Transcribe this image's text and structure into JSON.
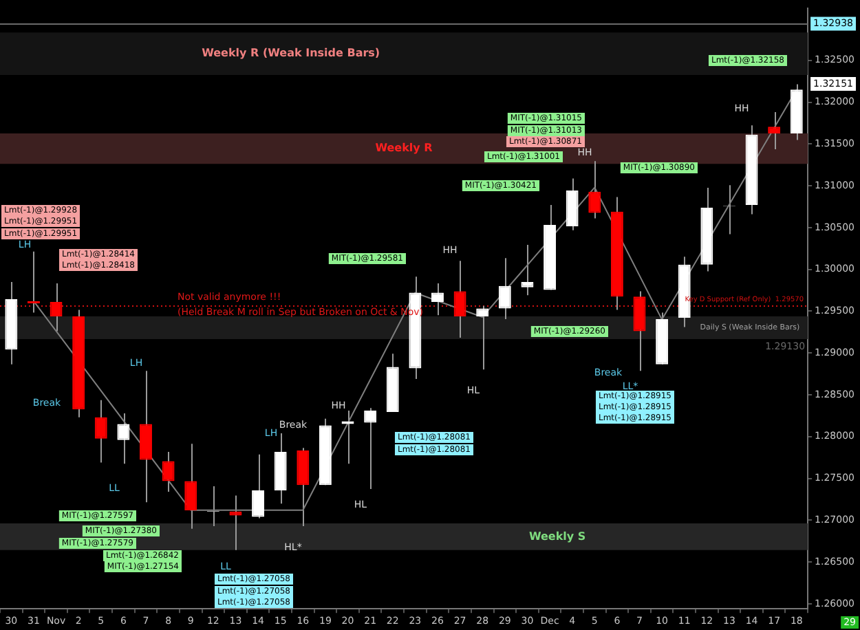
{
  "chart_data": {
    "type": "candlestick",
    "categories": [
      "30",
      "31",
      "Nov",
      "2",
      "5",
      "6",
      "7",
      "8",
      "9",
      "12",
      "13",
      "14",
      "15",
      "16",
      "19",
      "20",
      "21",
      "22",
      "23",
      "26",
      "27",
      "28",
      "29",
      "30",
      "Dec",
      "4",
      "5",
      "6",
      "7",
      "10",
      "11",
      "12",
      "13",
      "14",
      "17",
      "18"
    ],
    "ohlc": [
      [
        1.2904,
        1.29849,
        1.28865,
        1.29643
      ],
      [
        1.29619,
        1.30214,
        1.29484,
        1.29595
      ],
      [
        1.29611,
        1.29833,
        1.29262,
        1.29437
      ],
      [
        1.29437,
        1.29516,
        1.2823,
        1.28325
      ],
      [
        1.2823,
        1.28437,
        1.2769,
        1.27976
      ],
      [
        1.2796,
        1.28278,
        1.27675,
        1.2815
      ],
      [
        1.2815,
        1.28786,
        1.27214,
        1.27722
      ],
      [
        1.27706,
        1.27817,
        1.27341,
        1.27468
      ],
      [
        1.27468,
        1.27913,
        1.26897,
        1.27119
      ],
      [
        1.271,
        1.27405,
        1.26929,
        1.2711
      ],
      [
        1.27103,
        1.27294,
        1.26643,
        1.27056
      ],
      [
        1.2704,
        1.27786,
        1.27024,
        1.27357
      ],
      [
        1.27357,
        1.2804,
        1.27198,
        1.27817
      ],
      [
        1.27833,
        1.27865,
        1.26929,
        1.27421
      ],
      [
        1.27421,
        1.28214,
        1.27421,
        1.28135
      ],
      [
        1.2815,
        1.2831,
        1.27675,
        1.28183
      ],
      [
        1.28167,
        1.28341,
        1.27373,
        1.2831
      ],
      [
        1.28294,
        1.28992,
        1.28294,
        1.28833
      ],
      [
        1.28817,
        1.29913,
        1.2869,
        1.29722
      ],
      [
        1.29611,
        1.29833,
        1.29452,
        1.29722
      ],
      [
        1.29738,
        1.30103,
        1.29183,
        1.29437
      ],
      [
        1.29437,
        1.29563,
        1.28802,
        1.29532
      ],
      [
        1.29532,
        1.30135,
        1.29405,
        1.29802
      ],
      [
        1.29786,
        1.30294,
        1.2969,
        1.29849
      ],
      [
        1.29754,
        1.3077,
        1.29754,
        1.30532
      ],
      [
        1.30516,
        1.31087,
        1.30468,
        1.30944
      ],
      [
        1.30929,
        1.31294,
        1.30611,
        1.30675
      ],
      [
        1.3069,
        1.30865,
        1.29516,
        1.29675
      ],
      [
        1.29675,
        1.29738,
        1.28786,
        1.29262
      ],
      [
        1.28865,
        1.29484,
        1.28865,
        1.29405
      ],
      [
        1.29421,
        1.30151,
        1.2931,
        1.30056
      ],
      [
        1.30056,
        1.30976,
        1.29976,
        1.30738
      ],
      [
        1.30754,
        1.31008,
        1.30421,
        1.3076
      ],
      [
        1.3077,
        1.31722,
        1.30659,
        1.31611
      ],
      [
        1.31706,
        1.31881,
        1.31437,
        1.31627
      ],
      [
        1.31627,
        1.32214,
        1.31548,
        1.32151
      ]
    ],
    "colors": [
      "#ffffff",
      "#ff0000",
      "#ff0000",
      "#ff0000",
      "#ff0000",
      "#ffffff",
      "#ff0000",
      "#ff0000",
      "#ff0000",
      "#a0a0a0",
      "#ff0000",
      "#ffffff",
      "#ffffff",
      "#ff0000",
      "#ffffff",
      "#ffffff",
      "#ffffff",
      "#ffffff",
      "#ffffff",
      "#ffffff",
      "#ff0000",
      "#ffffff",
      "#ffffff",
      "#ffffff",
      "#ffffff",
      "#ffffff",
      "#ff0000",
      "#ff0000",
      "#ff0000",
      "#ffffff",
      "#ffffff",
      "#ffffff",
      "#a0a0a0",
      "#ffffff",
      "#ff0000",
      "#ffffff"
    ],
    "series": [
      {
        "type": "line",
        "color": "#7f7f7f",
        "values": [
          null,
          1.2962,
          null,
          null,
          null,
          null,
          null,
          null,
          1.2712,
          null,
          null,
          null,
          null,
          1.2712,
          null,
          null,
          null,
          null,
          1.2972,
          null,
          null,
          1.2943,
          null,
          null,
          null,
          null,
          1.3098,
          null,
          null,
          1.294,
          null,
          null,
          null,
          null,
          null,
          1.3215
        ]
      }
    ],
    "ylim": [
      1.2594,
      1.3312
    ],
    "yticks": [
      {
        "value": 1.26,
        "label": "1.26000"
      },
      {
        "value": 1.265,
        "label": "1.26500"
      },
      {
        "value": 1.27,
        "label": "1.27000"
      },
      {
        "value": 1.275,
        "label": "1.27500"
      },
      {
        "value": 1.28,
        "label": "1.28000"
      },
      {
        "value": 1.285,
        "label": "1.28500"
      },
      {
        "value": 1.29,
        "label": "1.29000"
      },
      {
        "value": 1.295,
        "label": "1.29500"
      },
      {
        "value": 1.3,
        "label": "1.30000"
      },
      {
        "value": 1.305,
        "label": "1.30500"
      },
      {
        "value": 1.31,
        "label": "1.31000"
      },
      {
        "value": 1.315,
        "label": "1.31500"
      },
      {
        "value": 1.32,
        "label": "1.32000"
      },
      {
        "value": 1.325,
        "label": "1.32500"
      }
    ],
    "grid": false,
    "marker": "none",
    "line_style": "solid",
    "bands": [
      {
        "axis": "y",
        "from": 1.32325,
        "to": 1.32833,
        "label": "Weekly R (Weak Inside Bars)",
        "color": "#141414"
      },
      {
        "axis": "y",
        "from": 1.31262,
        "to": 1.31627,
        "label": "Weekly R",
        "color": "#3d2020"
      },
      {
        "axis": "y",
        "from": 1.29167,
        "to": 1.29437,
        "label": "Daily S (Weak Inside Bars)",
        "color": "#1c1c1c"
      },
      {
        "axis": "y",
        "from": 1.26643,
        "to": 1.26962,
        "label": "Weekly S",
        "color": "#262626"
      }
    ],
    "ref_lines": [
      {
        "axis": "y",
        "value": 1.32938,
        "label": "1.32938",
        "color": "#6a6a6a",
        "line_style": "solid"
      },
      {
        "axis": "y",
        "value": 1.2957,
        "label": "Key D Support (Ref Only)  1.29570",
        "color": "#d01010",
        "line_style": "dotted"
      }
    ],
    "annotations": [
      "LH",
      "Lmt(-1)@1.29928",
      "Lmt(-1)@1.29951",
      "Lmt(-1)@1.29951",
      "Break",
      "LL",
      "Lmt(-1)@1.28414",
      "Lmt(-1)@1.28418",
      "LH",
      "MIT(-1)@1.27597",
      "MIT(-1)@1.27579",
      "MIT(-1)@1.27380",
      "Lmt(-1)@1.26842",
      "MIT(-1)@1.27154",
      "Not valid anymore !!!",
      "LL",
      "(Held Break M roll in Sep but Broken on Oct & Nov)",
      "LH",
      "Lmt(-1)@1.27058",
      "Lmt(-1)@1.27058",
      "Lmt(-1)@1.27058",
      "HL*",
      "Break",
      "HH",
      "HL",
      "MIT(-1)@1.29581",
      "HH",
      "HL",
      "Lmt(-1)@1.28081",
      "Lmt(-1)@1.28081",
      "MIT(-1)@1.30421",
      "Lmt(-1)@1.31001",
      "MIT(-1)@1.31015",
      "MIT(-1)@1.31013",
      "Lmt(-1)@1.30871",
      "HH",
      "MIT(-1)@1.29260",
      "Break",
      "LL*",
      "Lmt(-1)@1.28915",
      "Lmt(-1)@1.28915",
      "Lmt(-1)@1.28915",
      "MIT(-1)@1.30890",
      "HH",
      "Lmt(-1)@1.32158",
      "1.32151",
      "1.29130",
      "29"
    ]
  }
}
